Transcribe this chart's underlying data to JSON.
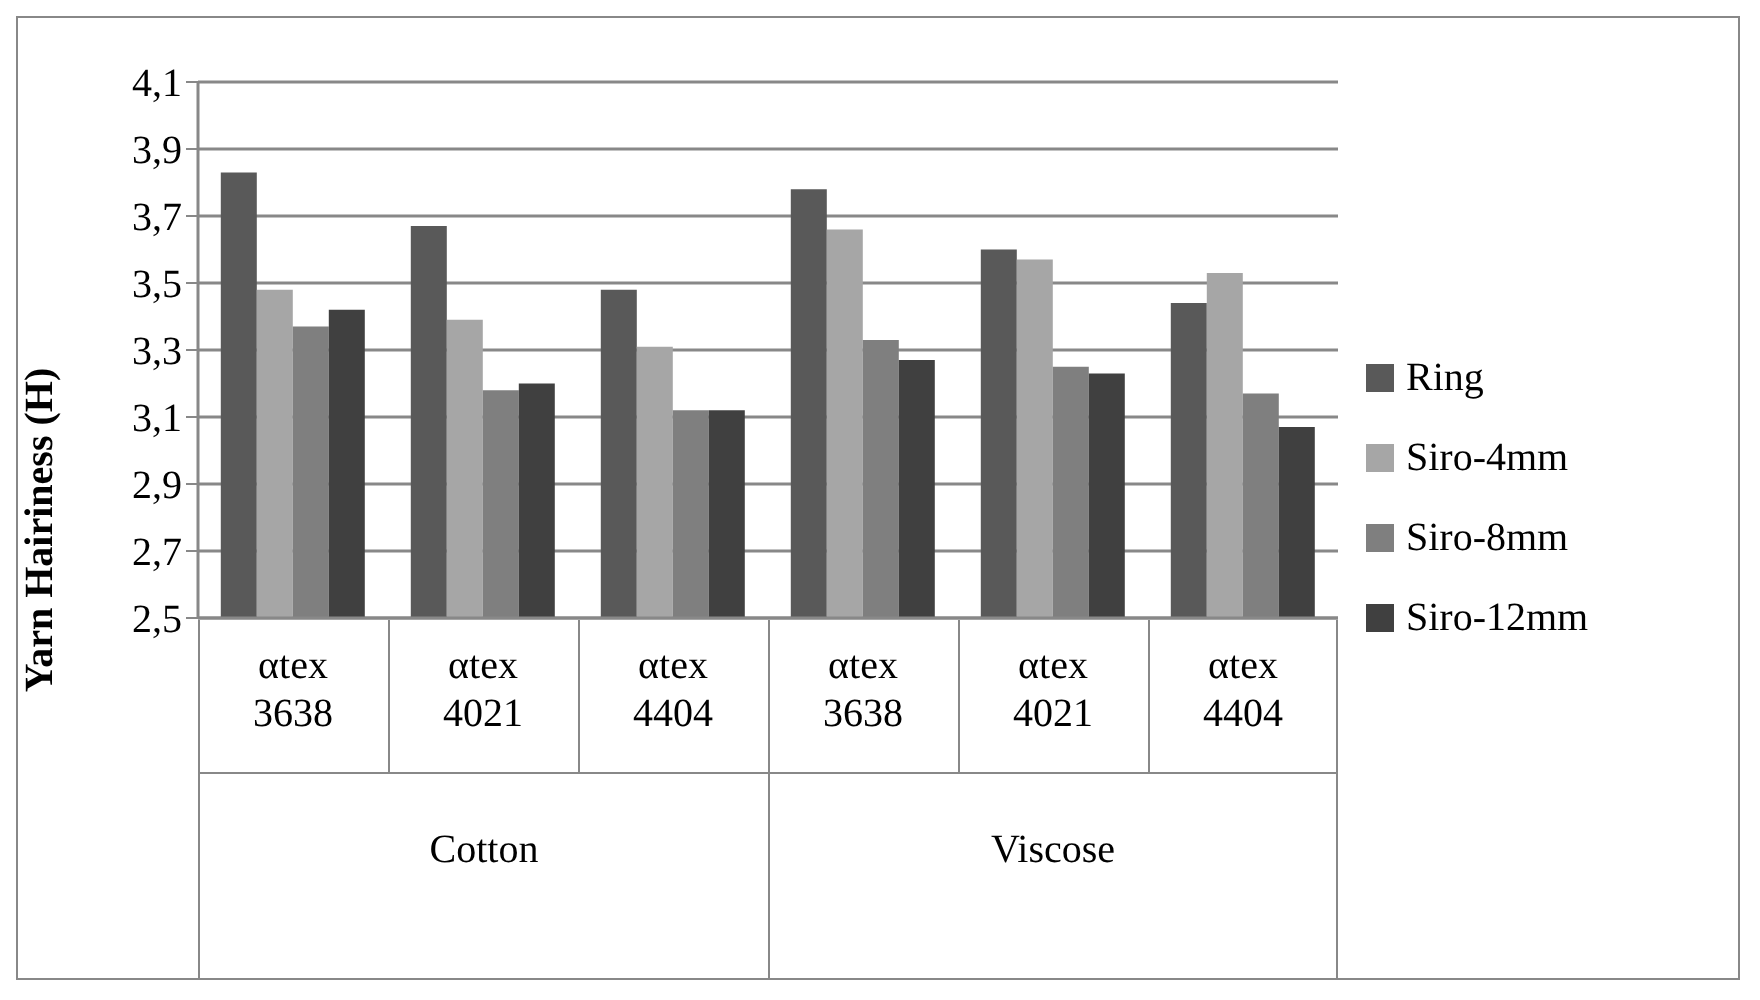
{
  "chart_data": {
    "type": "bar",
    "ylabel": "Yarn Hairiness  (H)",
    "categories": [
      "αtex 3638",
      "αtex 4021",
      "αtex 4404",
      "αtex 3638",
      "αtex 4021",
      "αtex 4404"
    ],
    "annotations": [
      "Cotton",
      "Viscose"
    ],
    "series": [
      {
        "name": "Ring",
        "color": "#595959",
        "values": [
          3.83,
          3.67,
          3.48,
          3.78,
          3.6,
          3.44
        ]
      },
      {
        "name": "Siro-4mm",
        "color": "#a6a6a6",
        "values": [
          3.48,
          3.39,
          3.31,
          3.66,
          3.57,
          3.53
        ]
      },
      {
        "name": "Siro-8mm",
        "color": "#7f7f7f",
        "values": [
          3.37,
          3.18,
          3.12,
          3.33,
          3.25,
          3.17
        ]
      },
      {
        "name": "Siro-12mm",
        "color": "#404040",
        "values": [
          3.42,
          3.2,
          3.12,
          3.27,
          3.23,
          3.07
        ]
      }
    ],
    "ylim": [
      2.5,
      4.1
    ],
    "yticks": [
      {
        "value": 2.5,
        "label": "2,5"
      },
      {
        "value": 2.7,
        "label": "2,7"
      },
      {
        "value": 2.9,
        "label": "2,9"
      },
      {
        "value": 3.1,
        "label": "3,1"
      },
      {
        "value": 3.3,
        "label": "3,3"
      },
      {
        "value": 3.5,
        "label": "3,5"
      },
      {
        "value": 3.7,
        "label": "3,7"
      },
      {
        "value": 3.9,
        "label": "3,9"
      },
      {
        "value": 4.1,
        "label": "4,1"
      }
    ],
    "grid": "y",
    "legend": "right"
  }
}
